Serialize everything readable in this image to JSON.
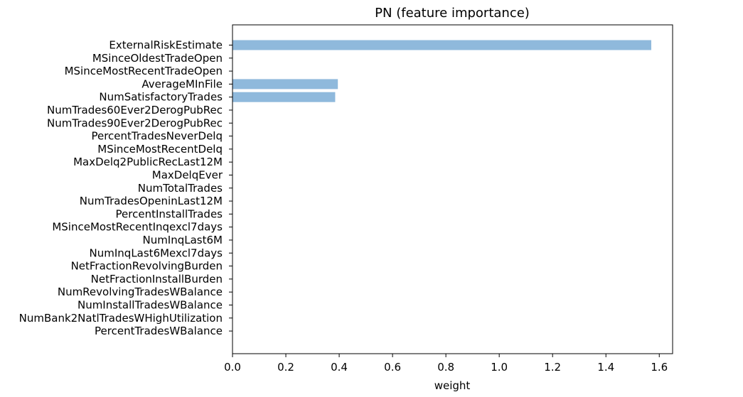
{
  "chart_data": {
    "type": "bar",
    "orientation": "horizontal",
    "title": "PN (feature importance)",
    "xlabel": "weight",
    "ylabel": "",
    "xlim": [
      0,
      1.65
    ],
    "xticks": [
      "0.0",
      "0.2",
      "0.4",
      "0.6",
      "0.8",
      "1.0",
      "1.2",
      "1.4",
      "1.6"
    ],
    "grid": false,
    "bar_color": "#8fb9dc",
    "categories": [
      "ExternalRiskEstimate",
      "MSinceOldestTradeOpen",
      "MSinceMostRecentTradeOpen",
      "AverageMInFile",
      "NumSatisfactoryTrades",
      "NumTrades60Ever2DerogPubRec",
      "NumTrades90Ever2DerogPubRec",
      "PercentTradesNeverDelq",
      "MSinceMostRecentDelq",
      "MaxDelq2PublicRecLast12M",
      "MaxDelqEver",
      "NumTotalTrades",
      "NumTradesOpeninLast12M",
      "PercentInstallTrades",
      "MSinceMostRecentInqexcl7days",
      "NumInqLast6M",
      "NumInqLast6Mexcl7days",
      "NetFractionRevolvingBurden",
      "NetFractionInstallBurden",
      "NumRevolvingTradesWBalance",
      "NumInstallTradesWBalance",
      "NumBank2NatlTradesWHighUtilization",
      "PercentTradesWBalance"
    ],
    "values": [
      1.57,
      0,
      0,
      0.395,
      0.385,
      0,
      0,
      0,
      0,
      0,
      0,
      0,
      0,
      0,
      0,
      0,
      0,
      0,
      0,
      0,
      0,
      0,
      0
    ]
  }
}
